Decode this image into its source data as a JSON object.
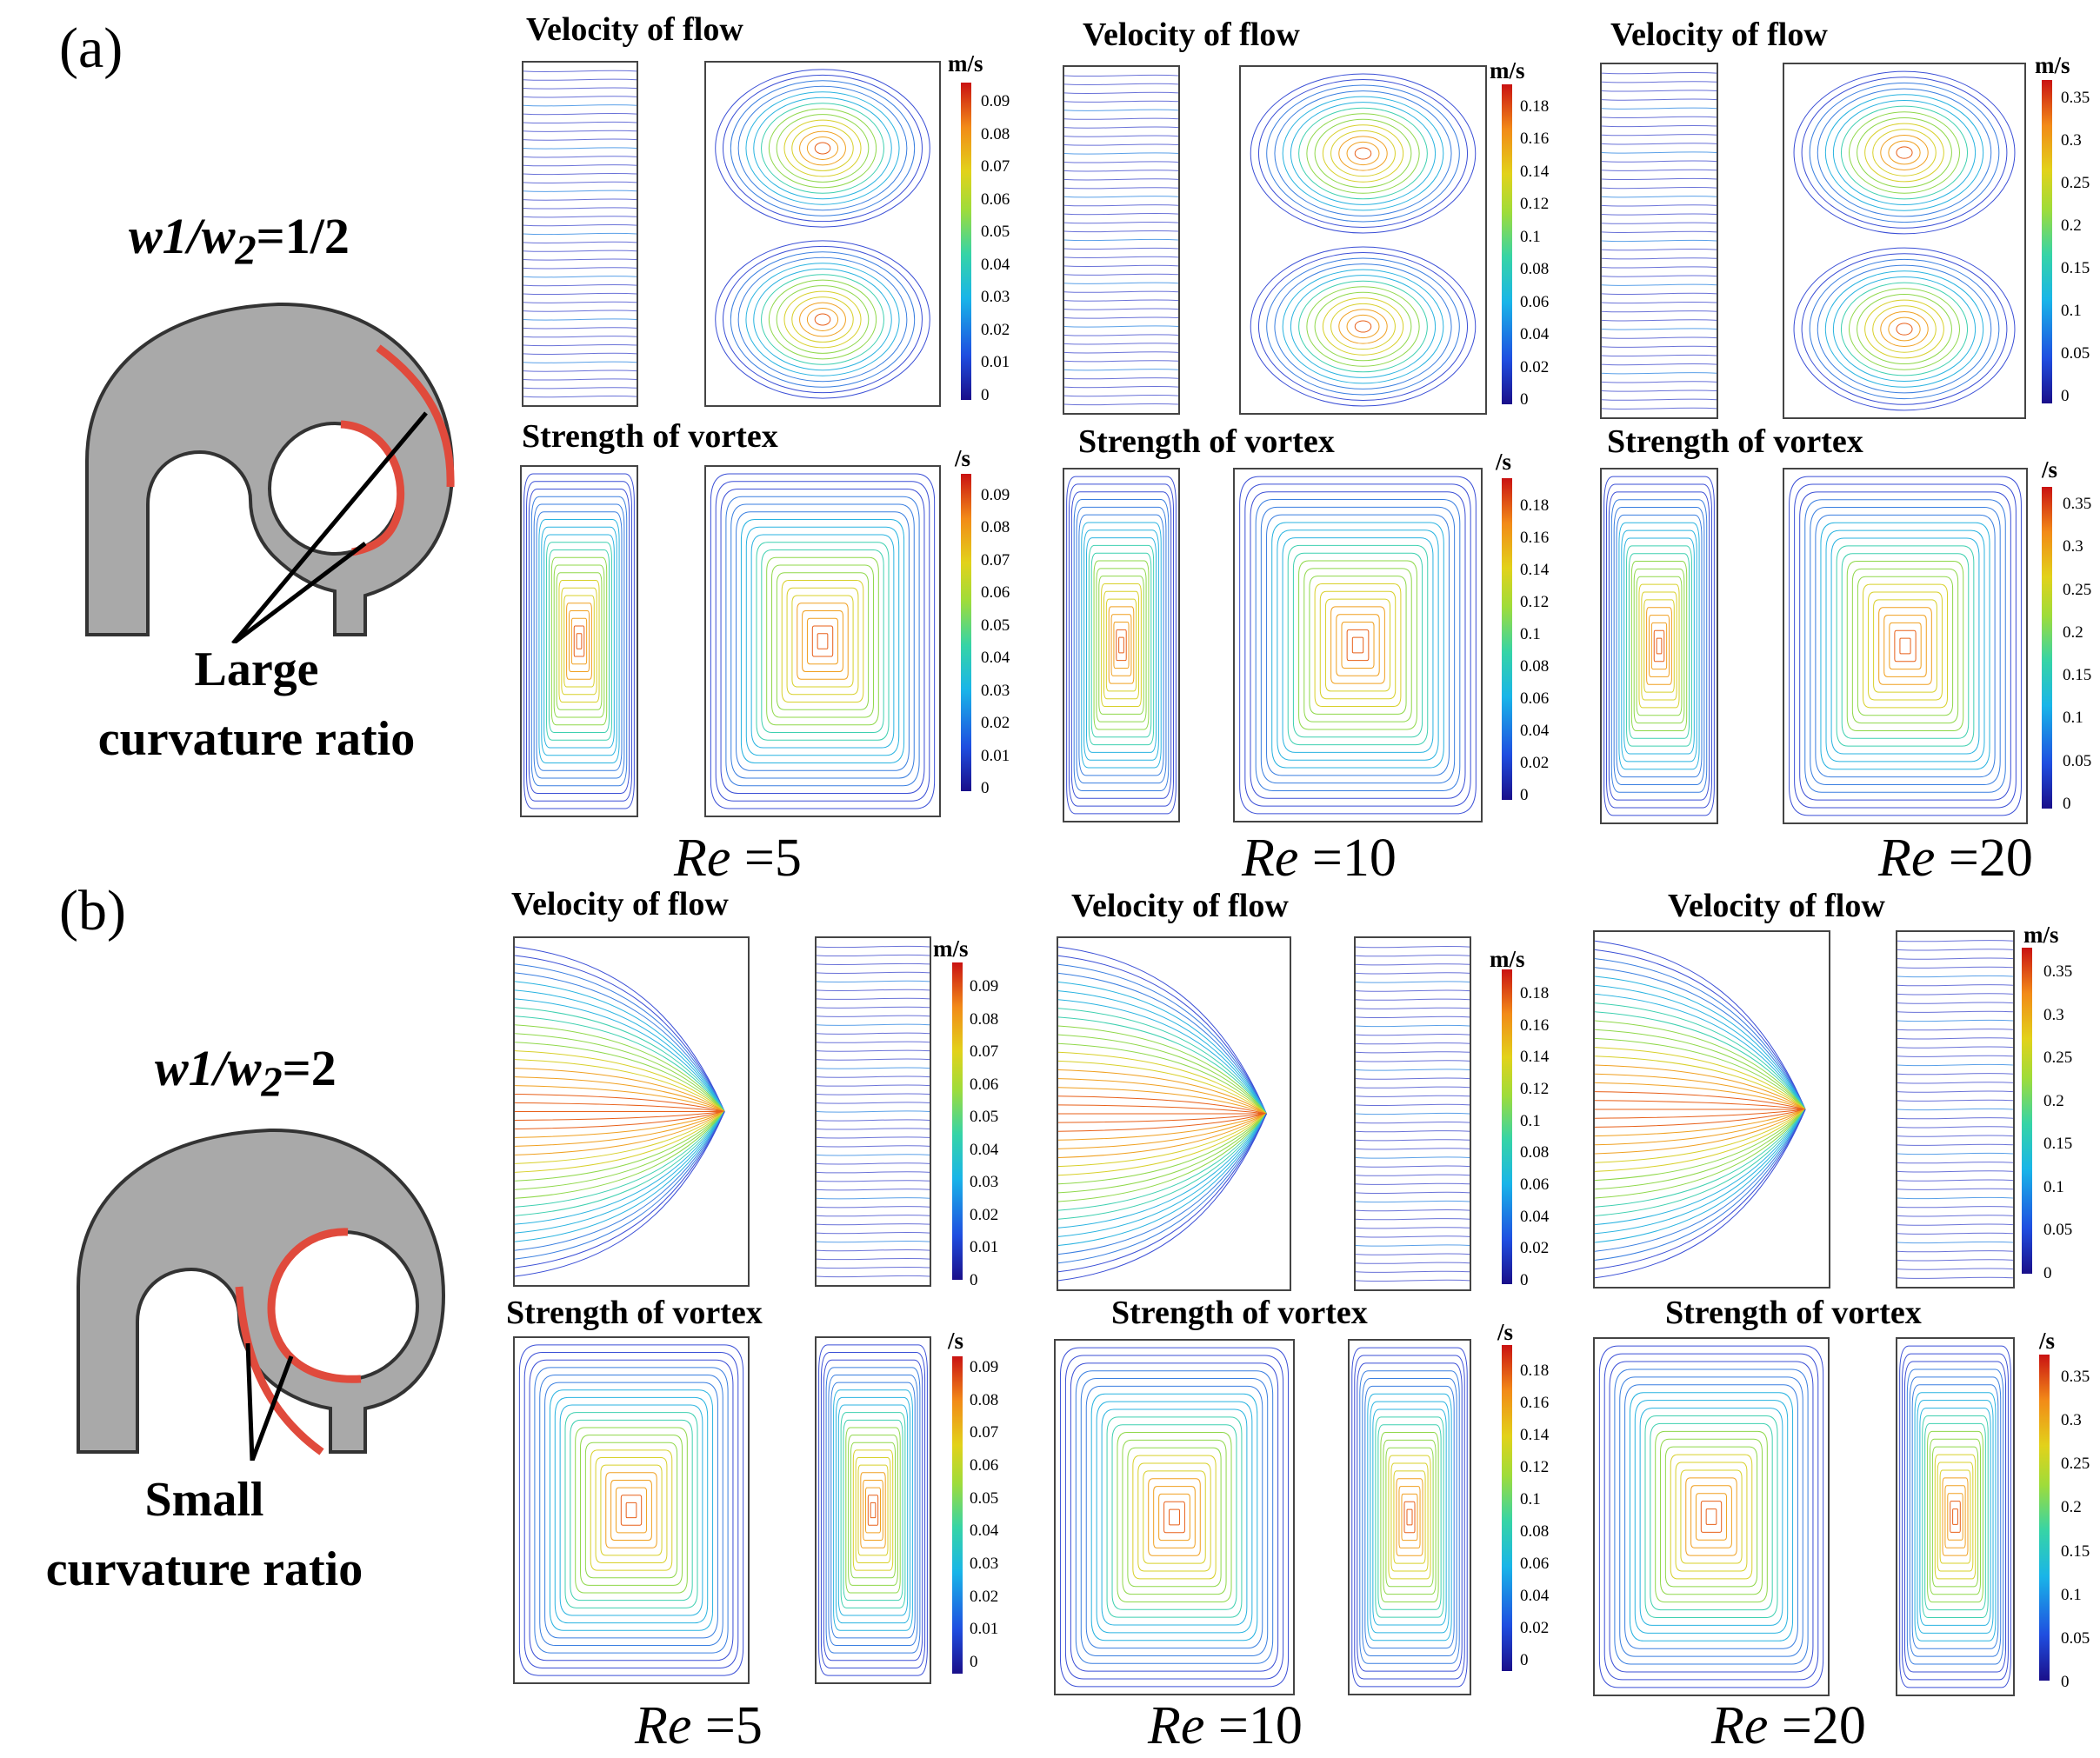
{
  "panel_a": {
    "tag": "(a)",
    "ratio": {
      "prefix": "w1/w",
      "sub": "2",
      "suffix": "=1/2"
    },
    "annotation": {
      "line1": "Large",
      "line2": "curvature ratio"
    },
    "re_labels": [
      {
        "symbol": "Re",
        "value": " =5"
      },
      {
        "symbol": "Re",
        "value": " =10"
      },
      {
        "symbol": "Re",
        "value": " =20"
      }
    ],
    "titles": {
      "velocity": [
        "Velocity of flow",
        "Velocity of flow",
        "Velocity of flow"
      ],
      "vortex": [
        "Strength of vortex",
        "Strength of vortex",
        "Strength of vortex"
      ]
    }
  },
  "panel_b": {
    "tag": "(b)",
    "ratio": {
      "prefix": "w1/w",
      "sub": "2",
      "suffix": "=2"
    },
    "annotation": {
      "line1": "Small",
      "line2": "curvature ratio"
    },
    "re_labels": [
      {
        "symbol": "Re",
        "value": " =5"
      },
      {
        "symbol": "Re",
        "value": " =10"
      },
      {
        "symbol": "Re",
        "value": " =20"
      }
    ],
    "titles": {
      "velocity": [
        "Velocity of flow",
        "Velocity of flow",
        "Velocity of flow"
      ],
      "vortex": [
        "Strength of vortex",
        "Strength of vortex",
        "Strength of vortex"
      ]
    }
  },
  "colorbars": {
    "velocity_unit": "m/s",
    "vortex_unit": "/s",
    "re5_ticks": [
      "0.09",
      "0.08",
      "0.07",
      "0.06",
      "0.05",
      "0.04",
      "0.03",
      "0.02",
      "0.01",
      "0"
    ],
    "re10_ticks": [
      "0.18",
      "0.16",
      "0.14",
      "0.12",
      "0.1",
      "0.08",
      "0.06",
      "0.04",
      "0.02",
      "0"
    ],
    "re20_ticks": [
      "0.35",
      "0.3",
      "0.25",
      "0.2",
      "0.15",
      "0.1",
      "0.05",
      "0"
    ]
  },
  "colors": {
    "channel_fill": "#a9a9a9",
    "highlight": "#e04a3c",
    "colormap": [
      "#1a0f8a",
      "#1f4ee0",
      "#19b5e8",
      "#36d4a6",
      "#9fdc3a",
      "#e2d21a",
      "#f28a18",
      "#c91212"
    ]
  }
}
